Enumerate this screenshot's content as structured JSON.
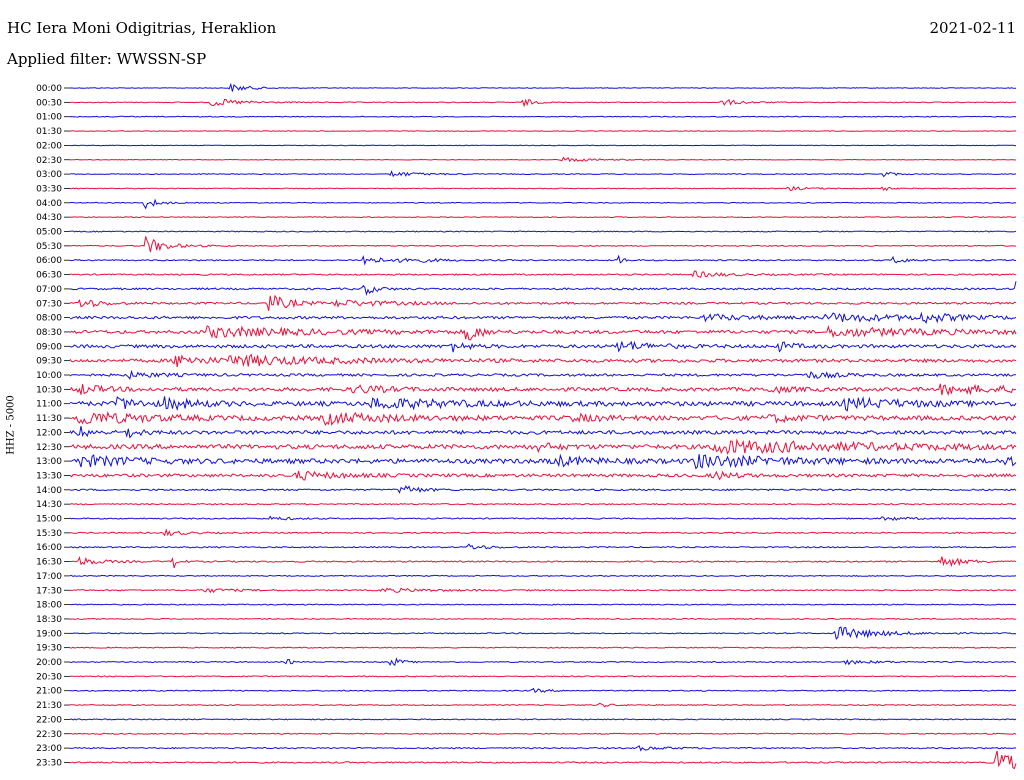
{
  "header": {
    "station": "HC Iera Moni Odigitrias, Heraklion",
    "date": "2021-02-11",
    "filter_label": "Applied filter: WWSSN-SP"
  },
  "chart_data": {
    "type": "line",
    "subtype": "helicorder",
    "title": "HC Iera Moni Odigitrias, Heraklion",
    "date": "2021-02-11",
    "filter": "WWSSN-SP",
    "ylabel": "HHZ - 5000",
    "colors": {
      "even_row": "#1010d8",
      "odd_row": "#e8103a"
    },
    "row_labels": [
      "00:00",
      "00:30",
      "01:00",
      "01:30",
      "02:00",
      "02:30",
      "03:00",
      "03:30",
      "04:00",
      "04:30",
      "05:00",
      "05:30",
      "06:00",
      "06:30",
      "07:00",
      "07:30",
      "08:00",
      "08:30",
      "09:00",
      "09:30",
      "10:00",
      "10:30",
      "11:00",
      "11:30",
      "12:00",
      "12:30",
      "13:00",
      "13:30",
      "14:00",
      "14:30",
      "15:00",
      "15:30",
      "16:00",
      "16:30",
      "17:00",
      "17:30",
      "18:00",
      "18:30",
      "19:00",
      "19:30",
      "20:00",
      "20:30",
      "21:00",
      "21:30",
      "22:00",
      "22:30",
      "23:00",
      "23:30"
    ],
    "noise_level": [
      0.3,
      0.4,
      0.4,
      0.3,
      0.3,
      0.3,
      0.4,
      0.4,
      0.4,
      0.4,
      0.5,
      0.5,
      0.6,
      0.7,
      0.9,
      1.0,
      1.3,
      1.6,
      1.6,
      1.6,
      1.2,
      1.8,
      2.2,
      2.2,
      1.8,
      2.2,
      2.3,
      1.5,
      0.8,
      0.6,
      0.6,
      0.6,
      0.6,
      0.7,
      0.5,
      0.6,
      0.5,
      0.5,
      0.5,
      0.5,
      0.5,
      0.5,
      0.5,
      0.5,
      0.5,
      0.5,
      0.6,
      0.7
    ],
    "events": [
      {
        "row": 0,
        "x": 0.17,
        "amp": 4,
        "w": 0.02
      },
      {
        "row": 1,
        "x": 0.15,
        "amp": 4,
        "w": 0.03
      },
      {
        "row": 1,
        "x": 0.48,
        "amp": 4,
        "w": 0.01
      },
      {
        "row": 1,
        "x": 0.69,
        "amp": 3,
        "w": 0.02
      },
      {
        "row": 5,
        "x": 0.52,
        "amp": 2.5,
        "w": 0.03
      },
      {
        "row": 6,
        "x": 0.34,
        "amp": 2.5,
        "w": 0.03
      },
      {
        "row": 6,
        "x": 0.86,
        "amp": 3,
        "w": 0.01
      },
      {
        "row": 7,
        "x": 0.76,
        "amp": 2,
        "w": 0.02
      },
      {
        "row": 7,
        "x": 0.86,
        "amp": 3,
        "w": 0.006
      },
      {
        "row": 8,
        "x": 0.08,
        "amp": 6,
        "w": 0.012
      },
      {
        "row": 11,
        "x": 0.08,
        "amp": 9,
        "w": 0.02
      },
      {
        "row": 12,
        "x": 0.31,
        "amp": 6,
        "w": 0.015
      },
      {
        "row": 12,
        "x": 0.35,
        "amp": 3,
        "w": 0.03
      },
      {
        "row": 12,
        "x": 0.58,
        "amp": 4,
        "w": 0.006
      },
      {
        "row": 12,
        "x": 0.87,
        "amp": 3,
        "w": 0.015
      },
      {
        "row": 13,
        "x": 0.66,
        "amp": 3,
        "w": 0.03
      },
      {
        "row": 14,
        "x": 0.31,
        "amp": 6,
        "w": 0.012
      },
      {
        "row": 14,
        "x": 1.0,
        "amp": 7,
        "w": 0.01
      },
      {
        "row": 15,
        "x": 0.01,
        "amp": 5,
        "w": 0.02
      },
      {
        "row": 15,
        "x": 0.21,
        "amp": 9,
        "w": 0.02
      },
      {
        "row": 15,
        "x": 0.28,
        "amp": 3,
        "w": 0.06
      },
      {
        "row": 16,
        "x": 0.67,
        "amp": 3,
        "w": 0.05
      },
      {
        "row": 16,
        "x": 0.8,
        "amp": 4,
        "w": 0.08
      },
      {
        "row": 16,
        "x": 0.9,
        "amp": 4,
        "w": 0.03
      },
      {
        "row": 17,
        "x": 0.14,
        "amp": 5,
        "w": 0.1
      },
      {
        "row": 17,
        "x": 0.42,
        "amp": 12,
        "w": 0.01
      },
      {
        "row": 17,
        "x": 0.8,
        "amp": 4,
        "w": 0.12
      },
      {
        "row": 18,
        "x": 0.4,
        "amp": 6,
        "w": 0.015
      },
      {
        "row": 18,
        "x": 0.58,
        "amp": 5,
        "w": 0.03
      },
      {
        "row": 18,
        "x": 0.75,
        "amp": 4,
        "w": 0.015
      },
      {
        "row": 19,
        "x": 0.11,
        "amp": 6,
        "w": 0.03
      },
      {
        "row": 19,
        "x": 0.17,
        "amp": 5,
        "w": 0.1
      },
      {
        "row": 20,
        "x": 0.06,
        "amp": 3,
        "w": 0.03
      },
      {
        "row": 20,
        "x": 0.78,
        "amp": 3,
        "w": 0.03
      },
      {
        "row": 21,
        "x": 0.01,
        "amp": 5,
        "w": 0.02
      },
      {
        "row": 21,
        "x": 0.3,
        "amp": 4,
        "w": 0.03
      },
      {
        "row": 21,
        "x": 0.74,
        "amp": 3,
        "w": 0.02
      },
      {
        "row": 21,
        "x": 0.92,
        "amp": 4,
        "w": 0.08
      },
      {
        "row": 22,
        "x": 0.05,
        "amp": 6,
        "w": 0.02
      },
      {
        "row": 22,
        "x": 0.1,
        "amp": 5,
        "w": 0.03
      },
      {
        "row": 22,
        "x": 0.32,
        "amp": 5,
        "w": 0.08
      },
      {
        "row": 22,
        "x": 0.82,
        "amp": 5,
        "w": 0.06
      },
      {
        "row": 23,
        "x": 0.01,
        "amp": 6,
        "w": 0.06
      },
      {
        "row": 23,
        "x": 0.27,
        "amp": 5,
        "w": 0.06
      },
      {
        "row": 23,
        "x": 0.53,
        "amp": 3,
        "w": 0.03
      },
      {
        "row": 23,
        "x": 0.74,
        "amp": 3,
        "w": 0.03
      },
      {
        "row": 24,
        "x": 0.01,
        "amp": 6,
        "w": 0.01
      },
      {
        "row": 24,
        "x": 0.06,
        "amp": 5,
        "w": 0.012
      },
      {
        "row": 25,
        "x": 0.49,
        "amp": 4,
        "w": 0.02
      },
      {
        "row": 25,
        "x": 0.68,
        "amp": 6,
        "w": 0.15
      },
      {
        "row": 26,
        "x": 0.01,
        "amp": 5,
        "w": 0.05
      },
      {
        "row": 26,
        "x": 0.51,
        "amp": 5,
        "w": 0.03
      },
      {
        "row": 26,
        "x": 0.66,
        "amp": 6,
        "w": 0.08
      },
      {
        "row": 26,
        "x": 0.99,
        "amp": 5,
        "w": 0.01
      },
      {
        "row": 27,
        "x": 0.24,
        "amp": 4,
        "w": 0.04
      },
      {
        "row": 27,
        "x": 0.68,
        "amp": 4,
        "w": 0.02
      },
      {
        "row": 28,
        "x": 0.35,
        "amp": 6,
        "w": 0.015
      },
      {
        "row": 30,
        "x": 0.21,
        "amp": 2,
        "w": 0.02
      },
      {
        "row": 30,
        "x": 0.86,
        "amp": 2.5,
        "w": 0.02
      },
      {
        "row": 31,
        "x": 0.1,
        "amp": 3,
        "w": 0.02
      },
      {
        "row": 32,
        "x": 0.42,
        "amp": 3,
        "w": 0.02
      },
      {
        "row": 33,
        "x": 0.01,
        "amp": 4,
        "w": 0.02
      },
      {
        "row": 33,
        "x": 0.11,
        "amp": 7,
        "w": 0.005
      },
      {
        "row": 33,
        "x": 0.92,
        "amp": 6,
        "w": 0.02
      },
      {
        "row": 35,
        "x": 0.14,
        "amp": 2,
        "w": 0.03
      },
      {
        "row": 35,
        "x": 0.33,
        "amp": 2,
        "w": 0.05
      },
      {
        "row": 38,
        "x": 0.81,
        "amp": 7,
        "w": 0.04
      },
      {
        "row": 40,
        "x": 0.23,
        "amp": 3,
        "w": 0.005
      },
      {
        "row": 40,
        "x": 0.34,
        "amp": 6,
        "w": 0.008
      },
      {
        "row": 40,
        "x": 0.82,
        "amp": 2,
        "w": 0.03
      },
      {
        "row": 42,
        "x": 0.49,
        "amp": 2,
        "w": 0.015
      },
      {
        "row": 43,
        "x": 0.56,
        "amp": 2,
        "w": 0.01
      },
      {
        "row": 46,
        "x": 0.6,
        "amp": 2,
        "w": 0.03
      },
      {
        "row": 47,
        "x": 0.98,
        "amp": 14,
        "w": 0.02
      }
    ]
  }
}
